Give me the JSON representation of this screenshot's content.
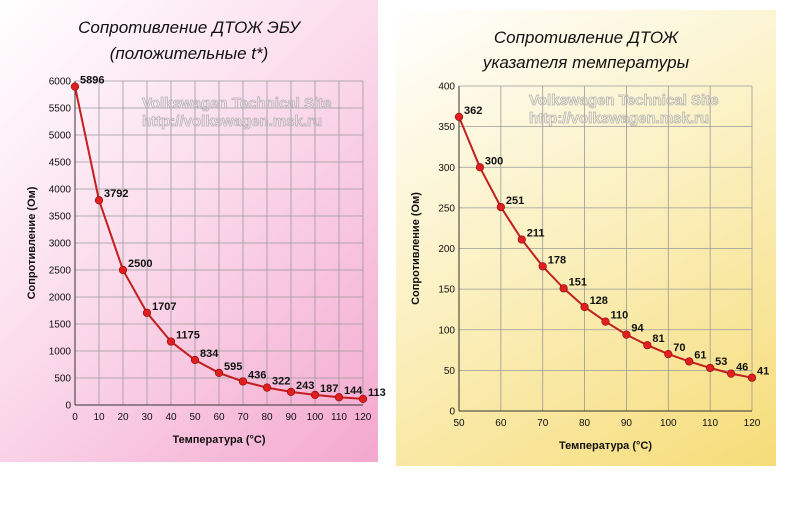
{
  "chart_data": [
    {
      "type": "line",
      "title": "Сопротивление ДТОЖ  ЭБУ",
      "subtitle": "(положительные t*)",
      "xlabel": "Температура (°C)",
      "ylabel": "Сопротивление (Ом)",
      "xlim": [
        0,
        120
      ],
      "ylim": [
        0,
        6000
      ],
      "x_ticks": [
        0,
        10,
        20,
        30,
        40,
        50,
        60,
        70,
        80,
        90,
        100,
        110,
        120
      ],
      "y_ticks": [
        0,
        500,
        1000,
        1500,
        2000,
        2500,
        3000,
        3500,
        4000,
        4500,
        5000,
        5500,
        6000
      ],
      "grid": true,
      "series": [
        {
          "name": "Сопротивление",
          "x": [
            0,
            10,
            20,
            30,
            40,
            50,
            60,
            70,
            80,
            90,
            100,
            110,
            120
          ],
          "values": [
            5896,
            3792,
            2500,
            1707,
            1175,
            834,
            595,
            436,
            322,
            243,
            187,
            144,
            113
          ]
        }
      ],
      "watermark": [
        "Volkswagen Technical Site",
        "http://volkswagen.msk.ru"
      ]
    },
    {
      "type": "line",
      "title": "Сопротивление ДТОЖ",
      "subtitle": "указателя температуры",
      "xlabel": "Температура (°C)",
      "ylabel": "Сопротивление (Ом)",
      "xlim": [
        50,
        120
      ],
      "ylim": [
        0,
        400
      ],
      "x_ticks": [
        50,
        60,
        70,
        80,
        90,
        100,
        110,
        120
      ],
      "y_ticks": [
        0,
        50,
        100,
        150,
        200,
        250,
        300,
        350,
        400
      ],
      "grid": true,
      "series": [
        {
          "name": "Сопротивление",
          "x": [
            50,
            55,
            60,
            65,
            70,
            75,
            80,
            85,
            90,
            95,
            100,
            105,
            110,
            115,
            120
          ],
          "values": [
            362,
            300,
            251,
            211,
            178,
            151,
            128,
            110,
            94,
            81,
            70,
            61,
            53,
            46,
            41
          ]
        }
      ],
      "watermark": [
        "Volkswagen Technical Site",
        "http://volkswagen.msk.ru"
      ]
    }
  ],
  "colors": {
    "line": "#c41e1e",
    "marker": "#e02020",
    "grid": "#9a9a9a",
    "left_panel": "#f4a8cf",
    "right_panel": "#f6dc78"
  }
}
